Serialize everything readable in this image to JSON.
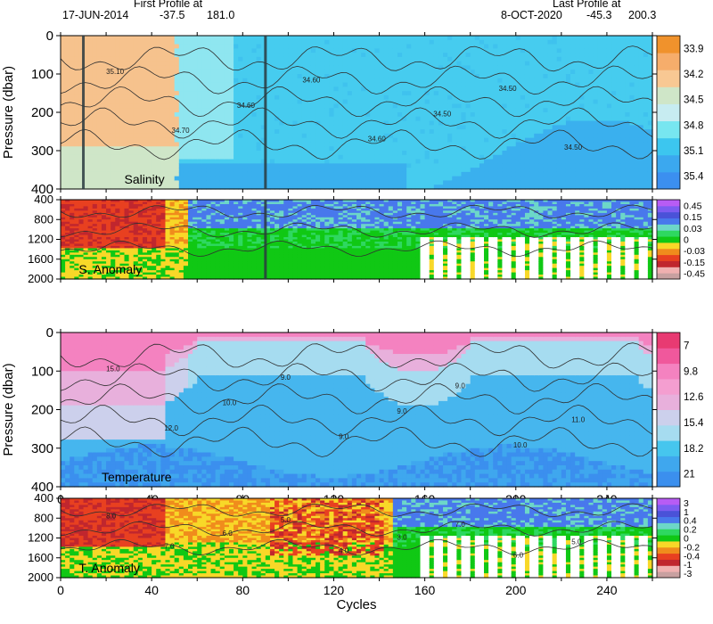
{
  "header": {
    "first_label": "First Profile at",
    "first_date": "17-JUN-2014",
    "first_lat": "-37.5",
    "first_lon": "181.0",
    "last_label": "Last Profile at",
    "last_date": "8-OCT-2020",
    "last_lat": "-45.3",
    "last_lon": "200.3"
  },
  "chart_data": [
    {
      "type": "heatmap",
      "id": "salinity",
      "title": "Salinity",
      "ylabel": "Pressure (dbar)",
      "xlim": [
        0,
        260
      ],
      "ylim": [
        0,
        400
      ],
      "yticks": [
        0,
        100,
        200,
        300,
        400
      ],
      "colorbar": {
        "labels": [
          "33.9",
          "34.2",
          "34.5",
          "34.8",
          "35.1",
          "35.4"
        ],
        "colors": [
          "#3b8ff0",
          "#3ba8ef",
          "#3cc6ef",
          "#77e6f0",
          "#c7ecf1",
          "#cfe6c8",
          "#f8c893",
          "#f6ad6b",
          "#f0922c"
        ]
      },
      "contour_labels": [
        "35.10",
        "34.70",
        "34.60",
        "34.60",
        "34.60",
        "34.50",
        "34.50",
        "34.50"
      ]
    },
    {
      "type": "heatmap",
      "id": "salinity-anomaly",
      "title": "S. Anomaly",
      "xlim": [
        0,
        260
      ],
      "ylim": [
        400,
        2000
      ],
      "yticks": [
        400,
        800,
        1200,
        1600,
        2000
      ],
      "colorbar": {
        "labels": [
          "0.45",
          "0.15",
          "0.03",
          "0",
          "-0.03",
          "-0.15",
          "-0.45"
        ],
        "colors": [
          "#c8a0a0",
          "#f0b0b0",
          "#c0262e",
          "#e84020",
          "#f08c1c",
          "#f8d828",
          "#10c814",
          "#2ed860",
          "#6cd7c8",
          "#4878ec",
          "#4a52d8",
          "#7c5cf0",
          "#b85cf4"
        ]
      }
    },
    {
      "type": "heatmap",
      "id": "temperature",
      "title": "Temperature",
      "ylabel": "Pressure (dbar)",
      "xlabel": "Cycles",
      "xlim": [
        0,
        260
      ],
      "ylim": [
        0,
        400
      ],
      "xticks": [
        0,
        40,
        80,
        120,
        160,
        200,
        240
      ],
      "yticks": [
        0,
        100,
        200,
        300,
        400
      ],
      "colorbar": {
        "labels": [
          "7",
          "9.8",
          "12.6",
          "15.4",
          "18.2",
          "21"
        ],
        "colors": [
          "#3b8fee",
          "#3fa7ee",
          "#46c6ee",
          "#a6dcf0",
          "#ccd0ec",
          "#e8b0dc",
          "#f49ed0",
          "#f482c0",
          "#f0589c",
          "#e83a72"
        ]
      },
      "contour_labels": [
        "15.0",
        "12.0",
        "10.0",
        "9.0",
        "9.0",
        "9.0",
        "9.0",
        "10.0",
        "11.0"
      ]
    },
    {
      "type": "heatmap",
      "id": "temperature-anomaly",
      "title": "T. Anomaly",
      "xlabel": "Cycles",
      "xlim": [
        0,
        260
      ],
      "ylim": [
        400,
        2000
      ],
      "xticks": [
        0,
        40,
        80,
        120,
        160,
        200,
        240
      ],
      "yticks": [
        400,
        800,
        1200,
        1600,
        2000
      ],
      "colorbar": {
        "labels": [
          "3",
          "1",
          "0.4",
          "0.2",
          "0",
          "-0.2",
          "-0.4",
          "-1",
          "-3"
        ],
        "colors": [
          "#c8a0a0",
          "#f0b0b0",
          "#c0262e",
          "#e84020",
          "#f08c1c",
          "#f8d828",
          "#10c814",
          "#2ed860",
          "#6cd7c8",
          "#4878ec",
          "#4a52d8",
          "#7c5cf0",
          "#b85cf4"
        ]
      },
      "contour_labels": [
        "8.0",
        "7.0",
        "6.0",
        "5.0",
        "4.0",
        "3.0",
        "7.0",
        "6.0",
        "5.0"
      ]
    }
  ]
}
